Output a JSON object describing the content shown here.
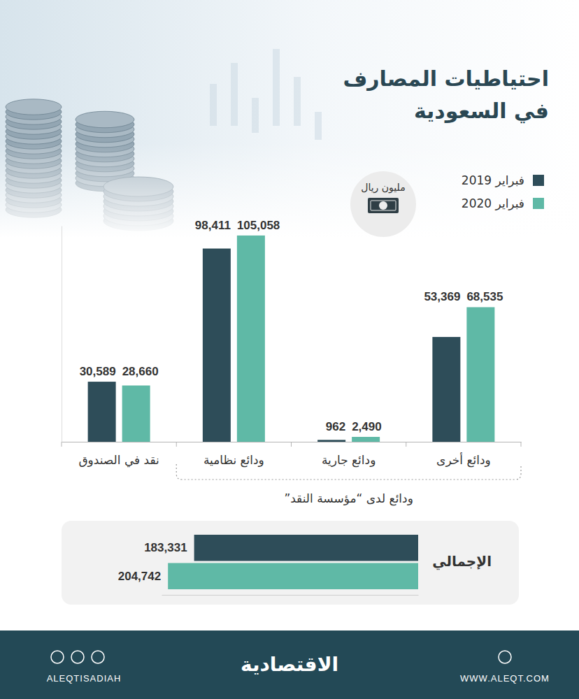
{
  "chart_data": [
    {
      "type": "bar",
      "title": "احتياطيات المصارف في السعودية",
      "annotations": [
        "مليون ريال",
        "ودائع لدى “مؤسسة النقد”"
      ],
      "categories": [
        "نقد في الصندوق",
        "ودائع نظامية",
        "ودائع جارية",
        "ودائع أخرى"
      ],
      "series": [
        {
          "name": "فبراير 2019",
          "color": "#2e4d59",
          "values": [
            30589,
            98411,
            962,
            53369
          ],
          "value_labels": [
            "30,589",
            "98,411",
            "962",
            "53,369"
          ]
        },
        {
          "name": "فبراير 2020",
          "color": "#5fb9a6",
          "values": [
            28660,
            105058,
            2490,
            68535
          ],
          "value_labels": [
            "28,660",
            "105,058",
            "2,490",
            "68,535"
          ]
        }
      ],
      "ylim": [
        0,
        110000
      ],
      "data_labels": true,
      "tick_labels": "x",
      "legend": "top-right"
    },
    {
      "type": "bar",
      "orientation": "horizontal",
      "categories": [
        "الإجمالي"
      ],
      "series": [
        {
          "color": "#2e4d59",
          "values": [
            183331
          ],
          "value_labels": [
            "183,331"
          ]
        },
        {
          "color": "#5fb9a6",
          "values": [
            204742
          ],
          "value_labels": [
            "204,742"
          ]
        }
      ],
      "xlim": [
        0,
        210000
      ],
      "data_labels": true,
      "tick_labels": "y"
    }
  ],
  "footer": {
    "brand": "الاقتصادية",
    "handle": "ALEQTISADIAH",
    "site": "WWW.ALEQT.COM"
  }
}
